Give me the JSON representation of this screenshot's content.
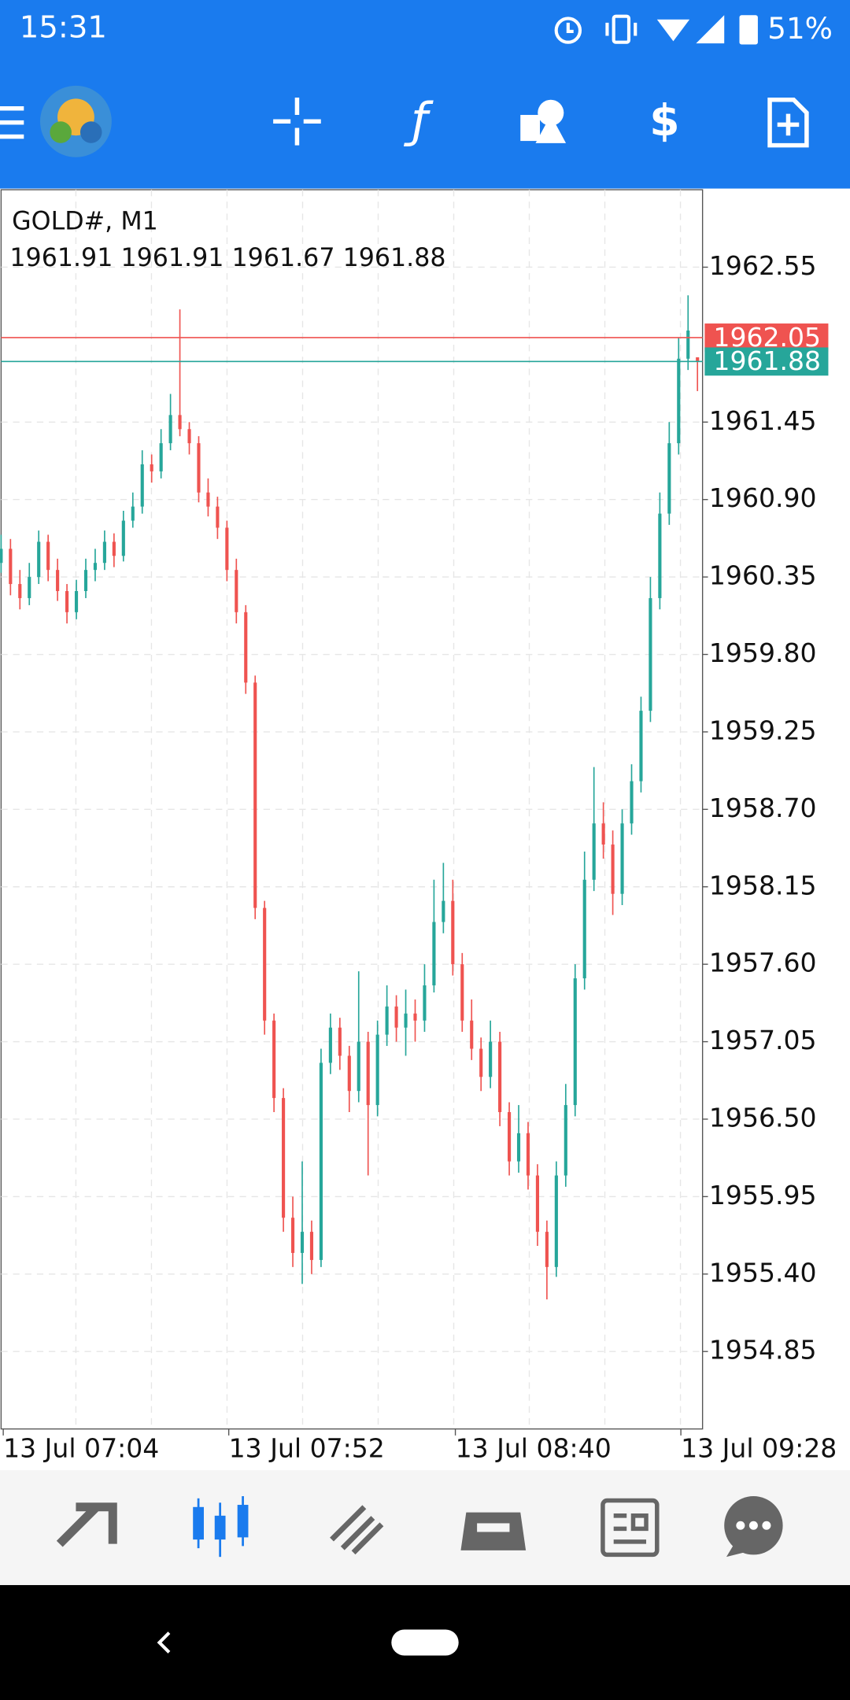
{
  "status_bar": {
    "time": "15:31",
    "battery": "51%"
  },
  "chart_data": {
    "type": "candlestick",
    "title": "GOLD#, M1",
    "candles": [
      [
        1960.45,
        1960.65,
        1960.38,
        1960.55
      ],
      [
        1960.55,
        1960.62,
        1960.22,
        1960.3
      ],
      [
        1960.3,
        1960.4,
        1960.12,
        1960.2
      ],
      [
        1960.2,
        1960.45,
        1960.15,
        1960.35
      ],
      [
        1960.35,
        1960.68,
        1960.3,
        1960.6
      ],
      [
        1960.6,
        1960.65,
        1960.32,
        1960.4
      ],
      [
        1960.4,
        1960.48,
        1960.18,
        1960.25
      ],
      [
        1960.25,
        1960.3,
        1960.02,
        1960.1
      ],
      [
        1960.1,
        1960.33,
        1960.05,
        1960.25
      ],
      [
        1960.25,
        1960.48,
        1960.2,
        1960.4
      ],
      [
        1960.4,
        1960.55,
        1960.32,
        1960.45
      ],
      [
        1960.45,
        1960.68,
        1960.4,
        1960.6
      ],
      [
        1960.6,
        1960.66,
        1960.42,
        1960.5
      ],
      [
        1960.5,
        1960.82,
        1960.46,
        1960.75
      ],
      [
        1960.75,
        1960.95,
        1960.7,
        1960.85
      ],
      [
        1960.85,
        1961.25,
        1960.8,
        1961.15
      ],
      [
        1961.15,
        1961.22,
        1961.02,
        1961.1
      ],
      [
        1961.1,
        1961.4,
        1961.05,
        1961.3
      ],
      [
        1961.3,
        1961.65,
        1961.25,
        1961.5
      ],
      [
        1961.5,
        1962.25,
        1961.35,
        1961.4
      ],
      [
        1961.4,
        1961.45,
        1961.22,
        1961.3
      ],
      [
        1961.3,
        1961.35,
        1960.88,
        1960.95
      ],
      [
        1960.95,
        1961.05,
        1960.78,
        1960.85
      ],
      [
        1960.85,
        1960.92,
        1960.62,
        1960.7
      ],
      [
        1960.7,
        1960.75,
        1960.32,
        1960.4
      ],
      [
        1960.4,
        1960.48,
        1960.02,
        1960.1
      ],
      [
        1960.1,
        1960.15,
        1959.52,
        1959.6
      ],
      [
        1959.6,
        1959.65,
        1957.92,
        1958.0
      ],
      [
        1958.0,
        1958.05,
        1957.1,
        1957.2
      ],
      [
        1957.2,
        1957.25,
        1956.55,
        1956.65
      ],
      [
        1956.65,
        1956.72,
        1955.7,
        1955.8
      ],
      [
        1955.8,
        1955.95,
        1955.45,
        1955.55
      ],
      [
        1955.55,
        1956.2,
        1955.33,
        1955.7
      ],
      [
        1955.7,
        1955.78,
        1955.4,
        1955.5
      ],
      [
        1955.5,
        1957.0,
        1955.45,
        1956.9
      ],
      [
        1956.9,
        1957.25,
        1956.82,
        1957.15
      ],
      [
        1957.15,
        1957.22,
        1956.85,
        1956.95
      ],
      [
        1956.95,
        1957.02,
        1956.55,
        1956.7
      ],
      [
        1956.7,
        1957.55,
        1956.62,
        1957.05
      ],
      [
        1957.05,
        1957.12,
        1956.1,
        1956.6
      ],
      [
        1956.6,
        1957.2,
        1956.52,
        1957.1
      ],
      [
        1957.1,
        1957.45,
        1957.02,
        1957.3
      ],
      [
        1957.3,
        1957.38,
        1957.05,
        1957.15
      ],
      [
        1957.15,
        1957.42,
        1956.95,
        1957.25
      ],
      [
        1957.25,
        1957.35,
        1957.05,
        1957.2
      ],
      [
        1957.2,
        1957.6,
        1957.12,
        1957.45
      ],
      [
        1957.45,
        1958.2,
        1957.4,
        1957.9
      ],
      [
        1957.9,
        1958.32,
        1957.82,
        1958.05
      ],
      [
        1958.05,
        1958.2,
        1957.52,
        1957.6
      ],
      [
        1957.6,
        1957.68,
        1957.12,
        1957.2
      ],
      [
        1957.2,
        1957.35,
        1956.92,
        1957.0
      ],
      [
        1957.0,
        1957.08,
        1956.7,
        1956.8
      ],
      [
        1956.8,
        1957.2,
        1956.72,
        1957.05
      ],
      [
        1957.05,
        1957.12,
        1956.45,
        1956.55
      ],
      [
        1956.55,
        1956.62,
        1956.1,
        1956.2
      ],
      [
        1956.2,
        1956.6,
        1956.12,
        1956.4
      ],
      [
        1956.4,
        1956.48,
        1956.0,
        1956.1
      ],
      [
        1956.1,
        1956.18,
        1955.6,
        1955.7
      ],
      [
        1955.7,
        1955.78,
        1955.22,
        1955.45
      ],
      [
        1955.45,
        1956.2,
        1955.38,
        1956.1
      ],
      [
        1956.1,
        1956.75,
        1956.02,
        1956.6
      ],
      [
        1956.6,
        1957.6,
        1956.52,
        1957.5
      ],
      [
        1957.5,
        1958.4,
        1957.42,
        1958.2
      ],
      [
        1958.2,
        1959.0,
        1958.12,
        1958.6
      ],
      [
        1958.6,
        1958.75,
        1958.35,
        1958.45
      ],
      [
        1958.45,
        1958.55,
        1957.95,
        1958.1
      ],
      [
        1958.1,
        1958.7,
        1958.02,
        1958.6
      ],
      [
        1958.6,
        1959.02,
        1958.52,
        1958.9
      ],
      [
        1958.9,
        1959.5,
        1958.82,
        1959.4
      ],
      [
        1959.4,
        1960.35,
        1959.32,
        1960.2
      ],
      [
        1960.2,
        1960.95,
        1960.12,
        1960.8
      ],
      [
        1960.8,
        1961.45,
        1960.72,
        1961.3
      ],
      [
        1961.3,
        1962.05,
        1961.22,
        1961.9
      ],
      [
        1961.9,
        1962.35,
        1961.82,
        1962.1
      ],
      [
        1961.91,
        1961.91,
        1961.67,
        1961.88
      ]
    ],
    "up_color": "#26a69a",
    "down_color": "#ef5350",
    "ylim": [
      1954.3,
      1963.1
    ],
    "yticks": [
      {
        "value": 1962.55,
        "label": "1962.55"
      },
      {
        "value": 1961.45,
        "label": "1961.45"
      },
      {
        "value": 1960.9,
        "label": "1960.90"
      },
      {
        "value": 1960.35,
        "label": "1960.35"
      },
      {
        "value": 1959.8,
        "label": "1959.80"
      },
      {
        "value": 1959.25,
        "label": "1959.25"
      },
      {
        "value": 1958.7,
        "label": "1958.70"
      },
      {
        "value": 1958.15,
        "label": "1958.15"
      },
      {
        "value": 1957.6,
        "label": "1957.60"
      },
      {
        "value": 1957.05,
        "label": "1957.05"
      },
      {
        "value": 1956.5,
        "label": "1956.50"
      },
      {
        "value": 1955.95,
        "label": "1955.95"
      },
      {
        "value": 1955.4,
        "label": "1955.40"
      },
      {
        "value": 1954.85,
        "label": "1954.85"
      }
    ],
    "xticks": [
      "13 Jul 07:04",
      "13 Jul 07:52",
      "13 Jul 08:40",
      "13 Jul 09:28"
    ],
    "ask": 1962.05,
    "bid": 1961.88,
    "ask_color": "#ef5350",
    "bid_color": "#26a69a",
    "grid": true
  }
}
